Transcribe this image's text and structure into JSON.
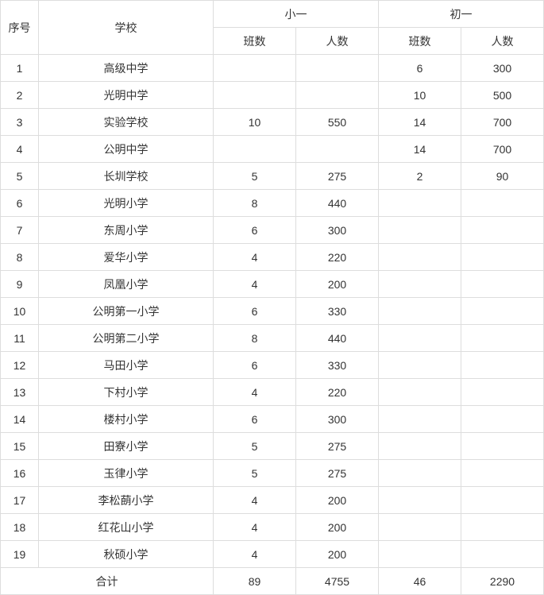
{
  "headers": {
    "seq": "序号",
    "school": "学校",
    "primary": "小一",
    "junior": "初一",
    "classes": "班数",
    "people": "人数"
  },
  "rows": [
    {
      "seq": "1",
      "school": "高级中学",
      "p_cls": "",
      "p_ppl": "",
      "j_cls": "6",
      "j_ppl": "300"
    },
    {
      "seq": "2",
      "school": "光明中学",
      "p_cls": "",
      "p_ppl": "",
      "j_cls": "10",
      "j_ppl": "500"
    },
    {
      "seq": "3",
      "school": "实验学校",
      "p_cls": "10",
      "p_ppl": "550",
      "j_cls": "14",
      "j_ppl": "700"
    },
    {
      "seq": "4",
      "school": "公明中学",
      "p_cls": "",
      "p_ppl": "",
      "j_cls": "14",
      "j_ppl": "700"
    },
    {
      "seq": "5",
      "school": "长圳学校",
      "p_cls": "5",
      "p_ppl": "275",
      "j_cls": "2",
      "j_ppl": "90"
    },
    {
      "seq": "6",
      "school": "光明小学",
      "p_cls": "8",
      "p_ppl": "440",
      "j_cls": "",
      "j_ppl": ""
    },
    {
      "seq": "7",
      "school": "东周小学",
      "p_cls": "6",
      "p_ppl": "300",
      "j_cls": "",
      "j_ppl": ""
    },
    {
      "seq": "8",
      "school": "爱华小学",
      "p_cls": "4",
      "p_ppl": "220",
      "j_cls": "",
      "j_ppl": ""
    },
    {
      "seq": "9",
      "school": "凤凰小学",
      "p_cls": "4",
      "p_ppl": "200",
      "j_cls": "",
      "j_ppl": ""
    },
    {
      "seq": "10",
      "school": "公明第一小学",
      "p_cls": "6",
      "p_ppl": "330",
      "j_cls": "",
      "j_ppl": ""
    },
    {
      "seq": "11",
      "school": "公明第二小学",
      "p_cls": "8",
      "p_ppl": "440",
      "j_cls": "",
      "j_ppl": ""
    },
    {
      "seq": "12",
      "school": "马田小学",
      "p_cls": "6",
      "p_ppl": "330",
      "j_cls": "",
      "j_ppl": ""
    },
    {
      "seq": "13",
      "school": "下村小学",
      "p_cls": "4",
      "p_ppl": "220",
      "j_cls": "",
      "j_ppl": ""
    },
    {
      "seq": "14",
      "school": "楼村小学",
      "p_cls": "6",
      "p_ppl": "300",
      "j_cls": "",
      "j_ppl": ""
    },
    {
      "seq": "15",
      "school": "田寮小学",
      "p_cls": "5",
      "p_ppl": "275",
      "j_cls": "",
      "j_ppl": ""
    },
    {
      "seq": "16",
      "school": "玉律小学",
      "p_cls": "5",
      "p_ppl": "275",
      "j_cls": "",
      "j_ppl": ""
    },
    {
      "seq": "17",
      "school": "李松蓢小学",
      "p_cls": "4",
      "p_ppl": "200",
      "j_cls": "",
      "j_ppl": ""
    },
    {
      "seq": "18",
      "school": "红花山小学",
      "p_cls": "4",
      "p_ppl": "200",
      "j_cls": "",
      "j_ppl": ""
    },
    {
      "seq": "19",
      "school": "秋硕小学",
      "p_cls": "4",
      "p_ppl": "200",
      "j_cls": "",
      "j_ppl": ""
    }
  ],
  "total": {
    "label": "合计",
    "p_cls": "89",
    "p_ppl": "4755",
    "j_cls": "46",
    "j_ppl": "2290"
  }
}
